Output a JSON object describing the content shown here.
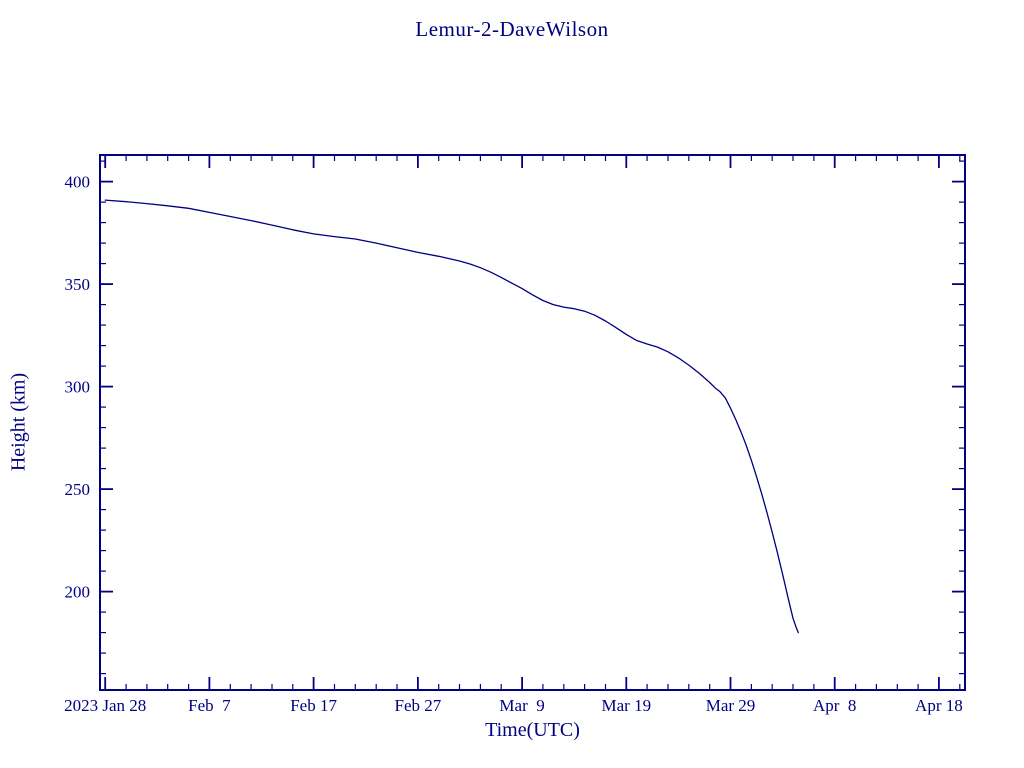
{
  "page": {
    "background": "#ffffff",
    "accent": "#000080"
  },
  "chart_data": {
    "type": "line",
    "title": "Lemur-2-DaveWilson",
    "xlabel": "Time(UTC)",
    "ylabel": "Height (km)",
    "axis_color": "#000080",
    "line_color": "#000080",
    "grid": false,
    "legend": "none",
    "x_axis": {
      "unit": "days since 2023 Jan 28",
      "tick_days": [
        0,
        10,
        20,
        30,
        40,
        50,
        60,
        70,
        80
      ],
      "tick_labels": [
        "2023 Jan 28",
        "Feb  7",
        "Feb 17",
        "Feb 27",
        "Mar  9",
        "Mar 19",
        "Mar 29",
        "Apr  8",
        "Apr 18"
      ],
      "minor_step_days": 2,
      "lim_days": [
        -0.5,
        82.5
      ]
    },
    "y_axis": {
      "tick_values": [
        200,
        250,
        300,
        350,
        400
      ],
      "minor_step": 10,
      "lim": [
        152,
        413
      ]
    },
    "series": [
      {
        "name": "Height (km)",
        "x_days": [
          0,
          2,
          4,
          6,
          8,
          10,
          12,
          14,
          16,
          18,
          20,
          22,
          24,
          26,
          28,
          30,
          32,
          34,
          35,
          36,
          37,
          38,
          39,
          40,
          41,
          42,
          43,
          44,
          45,
          46,
          47,
          48,
          49,
          50,
          51,
          52,
          53,
          54,
          55,
          56,
          57,
          58,
          58.5,
          59,
          59.5,
          60,
          60.5,
          61,
          61.5,
          62,
          62.5,
          63,
          63.5,
          64,
          64.5,
          65,
          65.5,
          66,
          66.3,
          66.5
        ],
        "values": [
          391,
          390.2,
          389.3,
          388.2,
          387,
          385,
          383,
          381,
          378.8,
          376.5,
          374.5,
          373.2,
          372,
          370,
          367.8,
          365.5,
          363.6,
          361.3,
          359.8,
          358,
          355.8,
          353.3,
          350.5,
          347.8,
          344.8,
          342,
          340,
          338.8,
          338,
          336.8,
          334.8,
          332,
          328.8,
          325.5,
          322.5,
          320.8,
          319.3,
          317,
          314,
          310.5,
          306.5,
          302,
          299.5,
          297.5,
          294.5,
          289.5,
          284,
          278,
          271.5,
          264,
          256,
          247.5,
          238.5,
          229,
          219,
          208.5,
          197.5,
          187,
          182.5,
          180
        ]
      }
    ]
  }
}
